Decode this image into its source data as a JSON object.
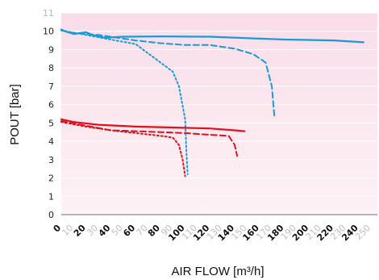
{
  "chart_data": {
    "type": "line",
    "xlabel": "AIR FLOW [m³/h]",
    "ylabel": "POUT [bar]",
    "xlim": [
      0,
      250
    ],
    "ylim": [
      0,
      11
    ],
    "x_ticks": [
      0,
      10,
      20,
      30,
      40,
      50,
      60,
      70,
      80,
      90,
      100,
      110,
      120,
      130,
      140,
      150,
      160,
      170,
      180,
      190,
      200,
      210,
      220,
      230,
      240,
      250
    ],
    "x_major_ticks": [
      0,
      20,
      40,
      60,
      80,
      100,
      120,
      140,
      160,
      180,
      200,
      220,
      240
    ],
    "y_ticks": [
      0,
      1,
      2,
      3,
      4,
      5,
      6,
      7,
      8,
      9,
      10,
      11
    ],
    "grid": true,
    "colors": {
      "blue": "#1a9ad8",
      "red": "#e0101e",
      "plot_bg_top": "#f9dde8",
      "plot_bg_bottom": "#fdf2f6"
    },
    "series": [
      {
        "color": "blue",
        "style": "solid",
        "x": [
          0,
          3,
          10,
          20,
          25,
          35,
          50,
          80,
          120,
          180,
          220,
          244
        ],
        "y": [
          10.1,
          10.0,
          9.85,
          9.95,
          9.8,
          9.65,
          9.7,
          9.72,
          9.7,
          9.55,
          9.5,
          9.4
        ]
      },
      {
        "color": "blue",
        "style": "dashed",
        "x": [
          0,
          10,
          30,
          60,
          80,
          100,
          120,
          140,
          155,
          165,
          170,
          172
        ],
        "y": [
          10.05,
          9.9,
          9.8,
          9.5,
          9.35,
          9.25,
          9.25,
          9.05,
          8.75,
          8.3,
          7.0,
          5.4
        ]
      },
      {
        "color": "blue",
        "style": "dashdot",
        "x": [
          0,
          20,
          40,
          60,
          70,
          80,
          90,
          95,
          100,
          101,
          102
        ],
        "y": [
          10.05,
          9.8,
          9.55,
          9.3,
          8.8,
          8.3,
          7.8,
          7.0,
          5.2,
          3.5,
          2.2
        ]
      },
      {
        "color": "red",
        "style": "solid",
        "x": [
          0,
          10,
          30,
          60,
          90,
          120,
          140,
          148
        ],
        "y": [
          5.2,
          5.05,
          4.9,
          4.8,
          4.75,
          4.7,
          4.6,
          4.55
        ]
      },
      {
        "color": "red",
        "style": "dashed",
        "x": [
          0,
          20,
          40,
          60,
          80,
          100,
          120,
          135,
          140,
          142
        ],
        "y": [
          5.1,
          4.85,
          4.6,
          4.55,
          4.5,
          4.45,
          4.35,
          4.3,
          3.8,
          3.2
        ]
      },
      {
        "color": "red",
        "style": "dashdot",
        "x": [
          0,
          20,
          40,
          60,
          80,
          90,
          95,
          98,
          100
        ],
        "y": [
          5.05,
          4.8,
          4.6,
          4.45,
          4.3,
          4.2,
          3.8,
          3.0,
          2.1
        ]
      }
    ]
  }
}
